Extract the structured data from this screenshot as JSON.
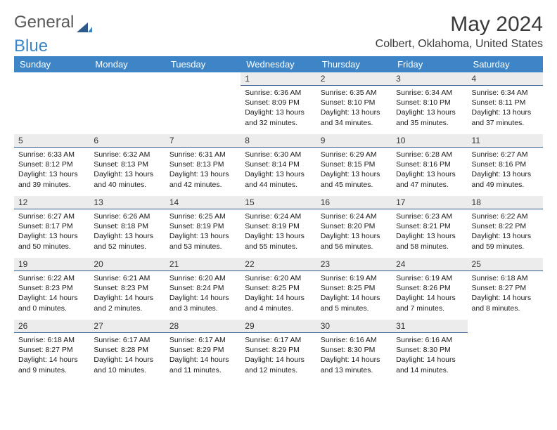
{
  "brand": {
    "text1": "General",
    "text2": "Blue"
  },
  "title": "May 2024",
  "location": "Colbert, Oklahoma, United States",
  "dayHeaders": [
    "Sunday",
    "Monday",
    "Tuesday",
    "Wednesday",
    "Thursday",
    "Friday",
    "Saturday"
  ],
  "colors": {
    "header_bg": "#3d85c6",
    "header_fg": "#ffffff",
    "daynum_bg": "#ececec",
    "daynum_border": "#2d5a8a",
    "text": "#1a1a1a",
    "title": "#3a3a3a"
  },
  "weeks": [
    [
      null,
      null,
      null,
      {
        "n": "1",
        "sr": "6:36 AM",
        "ss": "8:09 PM",
        "dl": "13 hours and 32 minutes."
      },
      {
        "n": "2",
        "sr": "6:35 AM",
        "ss": "8:10 PM",
        "dl": "13 hours and 34 minutes."
      },
      {
        "n": "3",
        "sr": "6:34 AM",
        "ss": "8:10 PM",
        "dl": "13 hours and 35 minutes."
      },
      {
        "n": "4",
        "sr": "6:34 AM",
        "ss": "8:11 PM",
        "dl": "13 hours and 37 minutes."
      }
    ],
    [
      {
        "n": "5",
        "sr": "6:33 AM",
        "ss": "8:12 PM",
        "dl": "13 hours and 39 minutes."
      },
      {
        "n": "6",
        "sr": "6:32 AM",
        "ss": "8:13 PM",
        "dl": "13 hours and 40 minutes."
      },
      {
        "n": "7",
        "sr": "6:31 AM",
        "ss": "8:13 PM",
        "dl": "13 hours and 42 minutes."
      },
      {
        "n": "8",
        "sr": "6:30 AM",
        "ss": "8:14 PM",
        "dl": "13 hours and 44 minutes."
      },
      {
        "n": "9",
        "sr": "6:29 AM",
        "ss": "8:15 PM",
        "dl": "13 hours and 45 minutes."
      },
      {
        "n": "10",
        "sr": "6:28 AM",
        "ss": "8:16 PM",
        "dl": "13 hours and 47 minutes."
      },
      {
        "n": "11",
        "sr": "6:27 AM",
        "ss": "8:16 PM",
        "dl": "13 hours and 49 minutes."
      }
    ],
    [
      {
        "n": "12",
        "sr": "6:27 AM",
        "ss": "8:17 PM",
        "dl": "13 hours and 50 minutes."
      },
      {
        "n": "13",
        "sr": "6:26 AM",
        "ss": "8:18 PM",
        "dl": "13 hours and 52 minutes."
      },
      {
        "n": "14",
        "sr": "6:25 AM",
        "ss": "8:19 PM",
        "dl": "13 hours and 53 minutes."
      },
      {
        "n": "15",
        "sr": "6:24 AM",
        "ss": "8:19 PM",
        "dl": "13 hours and 55 minutes."
      },
      {
        "n": "16",
        "sr": "6:24 AM",
        "ss": "8:20 PM",
        "dl": "13 hours and 56 minutes."
      },
      {
        "n": "17",
        "sr": "6:23 AM",
        "ss": "8:21 PM",
        "dl": "13 hours and 58 minutes."
      },
      {
        "n": "18",
        "sr": "6:22 AM",
        "ss": "8:22 PM",
        "dl": "13 hours and 59 minutes."
      }
    ],
    [
      {
        "n": "19",
        "sr": "6:22 AM",
        "ss": "8:23 PM",
        "dl": "14 hours and 0 minutes."
      },
      {
        "n": "20",
        "sr": "6:21 AM",
        "ss": "8:23 PM",
        "dl": "14 hours and 2 minutes."
      },
      {
        "n": "21",
        "sr": "6:20 AM",
        "ss": "8:24 PM",
        "dl": "14 hours and 3 minutes."
      },
      {
        "n": "22",
        "sr": "6:20 AM",
        "ss": "8:25 PM",
        "dl": "14 hours and 4 minutes."
      },
      {
        "n": "23",
        "sr": "6:19 AM",
        "ss": "8:25 PM",
        "dl": "14 hours and 5 minutes."
      },
      {
        "n": "24",
        "sr": "6:19 AM",
        "ss": "8:26 PM",
        "dl": "14 hours and 7 minutes."
      },
      {
        "n": "25",
        "sr": "6:18 AM",
        "ss": "8:27 PM",
        "dl": "14 hours and 8 minutes."
      }
    ],
    [
      {
        "n": "26",
        "sr": "6:18 AM",
        "ss": "8:27 PM",
        "dl": "14 hours and 9 minutes."
      },
      {
        "n": "27",
        "sr": "6:17 AM",
        "ss": "8:28 PM",
        "dl": "14 hours and 10 minutes."
      },
      {
        "n": "28",
        "sr": "6:17 AM",
        "ss": "8:29 PM",
        "dl": "14 hours and 11 minutes."
      },
      {
        "n": "29",
        "sr": "6:17 AM",
        "ss": "8:29 PM",
        "dl": "14 hours and 12 minutes."
      },
      {
        "n": "30",
        "sr": "6:16 AM",
        "ss": "8:30 PM",
        "dl": "14 hours and 13 minutes."
      },
      {
        "n": "31",
        "sr": "6:16 AM",
        "ss": "8:30 PM",
        "dl": "14 hours and 14 minutes."
      },
      null
    ]
  ]
}
